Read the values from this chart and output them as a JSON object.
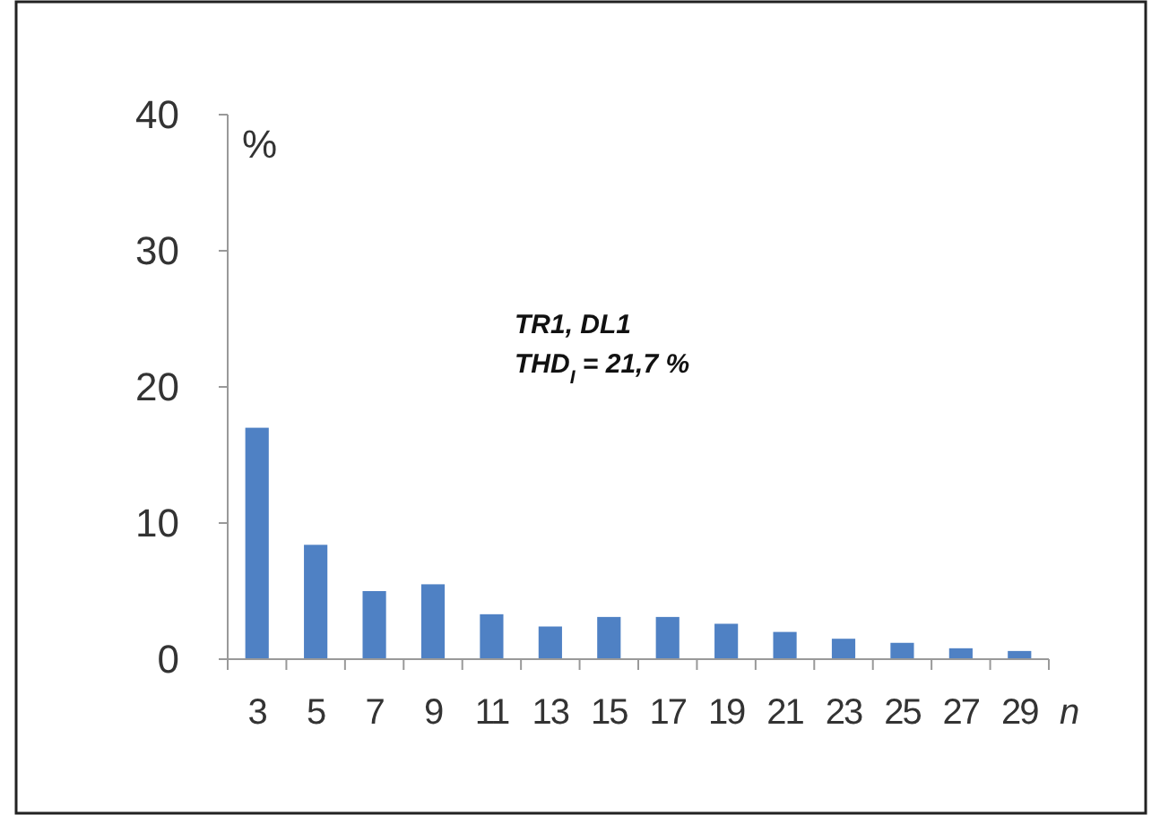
{
  "chart_data": {
    "type": "bar",
    "xlabel": "n",
    "ylabel": "%",
    "categories": [
      "3",
      "5",
      "7",
      "9",
      "11",
      "13",
      "15",
      "17",
      "19",
      "21",
      "23",
      "25",
      "27",
      "29"
    ],
    "values": [
      17,
      8.4,
      5,
      5.5,
      3.3,
      2.4,
      3.1,
      3.1,
      2.6,
      2,
      1.5,
      1.2,
      0.8,
      0.6
    ],
    "color": "#4f81c4",
    "ylim": [
      0,
      40
    ],
    "yticks": [
      0,
      10,
      20,
      30,
      40
    ],
    "grid": false,
    "annotations": [
      "TR1, DL1",
      "THD$_{I}$ = 21,7 %"
    ]
  }
}
